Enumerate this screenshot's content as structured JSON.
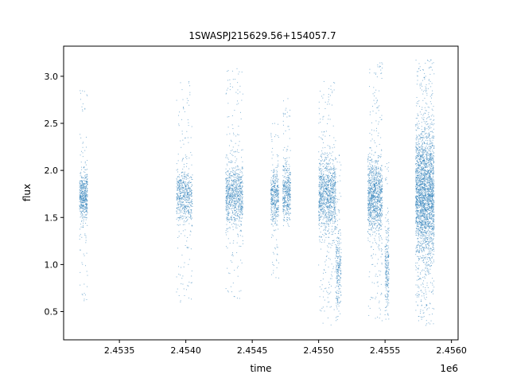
{
  "chart_data": {
    "type": "scatter",
    "title": "1SWASPJ215629.56+154057.7",
    "xlabel": "time",
    "ylabel": "flux",
    "x_offset_label": "1e6",
    "x_ticks": [
      {
        "value": 2.4535,
        "label": "2.4535"
      },
      {
        "value": 2.454,
        "label": "2.4540"
      },
      {
        "value": 2.4545,
        "label": "2.4545"
      },
      {
        "value": 2.455,
        "label": "2.4550"
      },
      {
        "value": 2.4555,
        "label": "2.4555"
      },
      {
        "value": 2.456,
        "label": "2.4560"
      }
    ],
    "y_ticks": [
      {
        "value": 0.5,
        "label": "0.5"
      },
      {
        "value": 1.0,
        "label": "1.0"
      },
      {
        "value": 1.5,
        "label": "1.5"
      },
      {
        "value": 2.0,
        "label": "2.0"
      },
      {
        "value": 2.5,
        "label": "2.5"
      },
      {
        "value": 3.0,
        "label": "3.0"
      }
    ],
    "xlim": [
      2.45308,
      2.45605
    ],
    "ylim": [
      0.2,
      3.32
    ],
    "grid": false,
    "point_color": "#1f77b4",
    "series": [
      {
        "clusters": [
          {
            "x": [
              2.4532,
              2.45326
            ],
            "y_core": [
              1.5,
              1.95
            ],
            "y_full": [
              0.58,
              2.88
            ],
            "density": 520
          },
          {
            "x": [
              2.45393,
              2.45405
            ],
            "y_core": [
              1.5,
              1.95
            ],
            "y_full": [
              0.6,
              2.95
            ],
            "density": 640
          },
          {
            "x": [
              2.4543,
              2.45443
            ],
            "y_core": [
              1.45,
              2.0
            ],
            "y_full": [
              0.62,
              3.1
            ],
            "density": 900
          },
          {
            "x": [
              2.45464,
              2.4547
            ],
            "y_core": [
              1.5,
              1.95
            ],
            "y_full": [
              0.85,
              2.5
            ],
            "density": 420
          },
          {
            "x": [
              2.45473,
              2.45479
            ],
            "y_core": [
              1.5,
              2.0
            ],
            "y_full": [
              1.4,
              2.78
            ],
            "density": 420
          },
          {
            "x": [
              2.455,
              2.45513
            ],
            "y_core": [
              1.4,
              2.05
            ],
            "y_full": [
              0.35,
              3.0
            ],
            "density": 1100
          },
          {
            "x": [
              2.45513,
              2.45517
            ],
            "y_core": [
              0.6,
              1.3
            ],
            "y_full": [
              0.4,
              2.2
            ],
            "density": 260
          },
          {
            "x": [
              2.45537,
              2.45548
            ],
            "y_core": [
              1.4,
              2.05
            ],
            "y_full": [
              0.4,
              3.15
            ],
            "density": 1100
          },
          {
            "x": [
              2.4555,
              2.45553
            ],
            "y_core": [
              0.6,
              1.3
            ],
            "y_full": [
              0.4,
              2.1
            ],
            "density": 240
          },
          {
            "x": [
              2.45573,
              2.45587
            ],
            "y_core": [
              1.2,
              2.3
            ],
            "y_full": [
              0.35,
              3.18
            ],
            "density": 2600
          }
        ]
      }
    ]
  }
}
